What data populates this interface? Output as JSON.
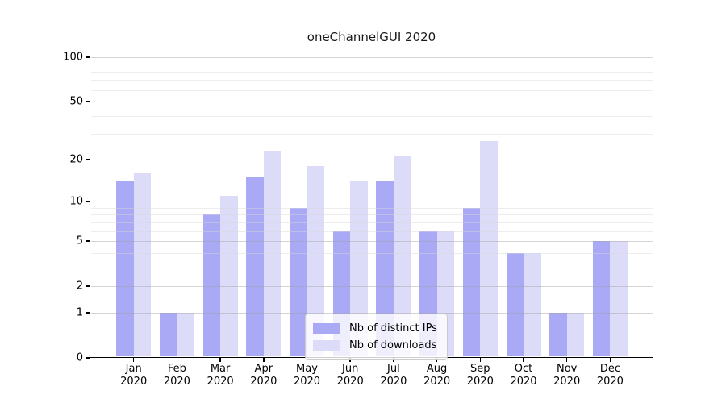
{
  "chart_data": {
    "type": "bar",
    "title": "oneChannelGUI 2020",
    "categories": [
      "Jan 2020",
      "Feb 2020",
      "Mar 2020",
      "Apr 2020",
      "May 2020",
      "Jun 2020",
      "Jul 2020",
      "Aug 2020",
      "Sep 2020",
      "Oct 2020",
      "Nov 2020",
      "Dec 2020"
    ],
    "series": [
      {
        "name": "Nb of distinct IPs",
        "color": "#a9a9f6",
        "values": [
          14,
          1,
          8,
          15,
          9,
          6,
          14,
          6,
          9,
          4,
          1,
          5
        ]
      },
      {
        "name": "Nb of downloads",
        "color": "#dcdcf9",
        "values": [
          16,
          1,
          11,
          23,
          18,
          14,
          21,
          6,
          27,
          4,
          1,
          5
        ]
      }
    ],
    "xlabel": "",
    "ylabel": "",
    "yscale": "log1p",
    "ylim": [
      0,
      115
    ],
    "yticks": [
      100,
      50,
      20,
      10,
      5,
      2,
      1,
      0
    ],
    "minor_gridlines": [
      3,
      4,
      6,
      7,
      8,
      9,
      30,
      40,
      60,
      70,
      80,
      90
    ],
    "grid": true,
    "legend_position": "lower center"
  }
}
